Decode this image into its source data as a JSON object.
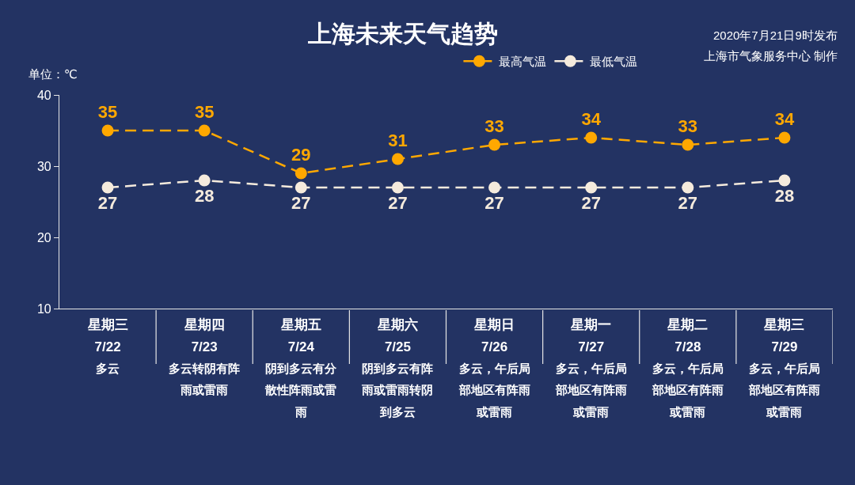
{
  "chart_data": {
    "type": "line",
    "title": "上海未来天气趋势",
    "ylabel": "单位：℃",
    "categories": [
      "星期三\n7/22\n多云",
      "星期四\n7/23\n多云转阴有阵雨或雷雨",
      "星期五\n7/24\n阴到多云有分散性阵雨或雷雨",
      "星期六\n7/25\n阴到多云有阵雨或雷雨转阴到多云",
      "星期日\n7/26\n多云，午后局部地区有阵雨或雷雨",
      "星期一\n7/27\n多云，午后局部地区有阵雨或雷雨",
      "星期二\n7/28\n多云，午后局部地区有阵雨或雷雨",
      "星期三\n7/29\n多云，午后局部地区有阵雨或雷雨"
    ],
    "series": [
      {
        "name": "最高气温",
        "color": "#ffa800",
        "values": [
          35,
          35,
          29,
          31,
          33,
          34,
          33,
          34
        ]
      },
      {
        "name": "最低气温",
        "color": "#f5ebdd",
        "values": [
          27,
          28,
          27,
          27,
          27,
          27,
          27,
          28
        ]
      }
    ],
    "ylim": [
      10,
      40
    ],
    "yticks": [
      10,
      20,
      30,
      40
    ],
    "grid": false,
    "legend": "top",
    "marker": "circle",
    "line_style": "dashed",
    "data_labels": true,
    "annotations": [
      "2020年7月21日9时发布",
      "上海市气象服务中心 制作"
    ]
  }
}
